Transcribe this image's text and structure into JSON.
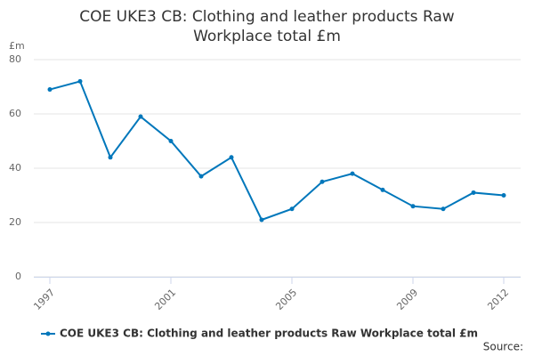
{
  "chart_data": {
    "type": "line",
    "title": "COE UKE3 CB: Clothing and leather products Raw Workplace total £m",
    "y_label": "£m",
    "source": "Source:",
    "x": [
      1997,
      1998,
      1999,
      2000,
      2001,
      2002,
      2003,
      2004,
      2005,
      2006,
      2007,
      2008,
      2009,
      2010,
      2011,
      2012
    ],
    "series": [
      {
        "name": "COE UKE3 CB: Clothing and leather products Raw Workplace total £m",
        "color": "#0077bb",
        "values": [
          69,
          72,
          44,
          59,
          50,
          37,
          44,
          21,
          25,
          35,
          38,
          32,
          26,
          25,
          31,
          30
        ]
      }
    ],
    "xlim": [
      1997,
      2012
    ],
    "xticks": [
      1997,
      2001,
      2005,
      2009,
      2012
    ],
    "ylim": [
      0,
      80
    ],
    "yticks": [
      0,
      20,
      40,
      60,
      80
    ],
    "grid": true
  }
}
